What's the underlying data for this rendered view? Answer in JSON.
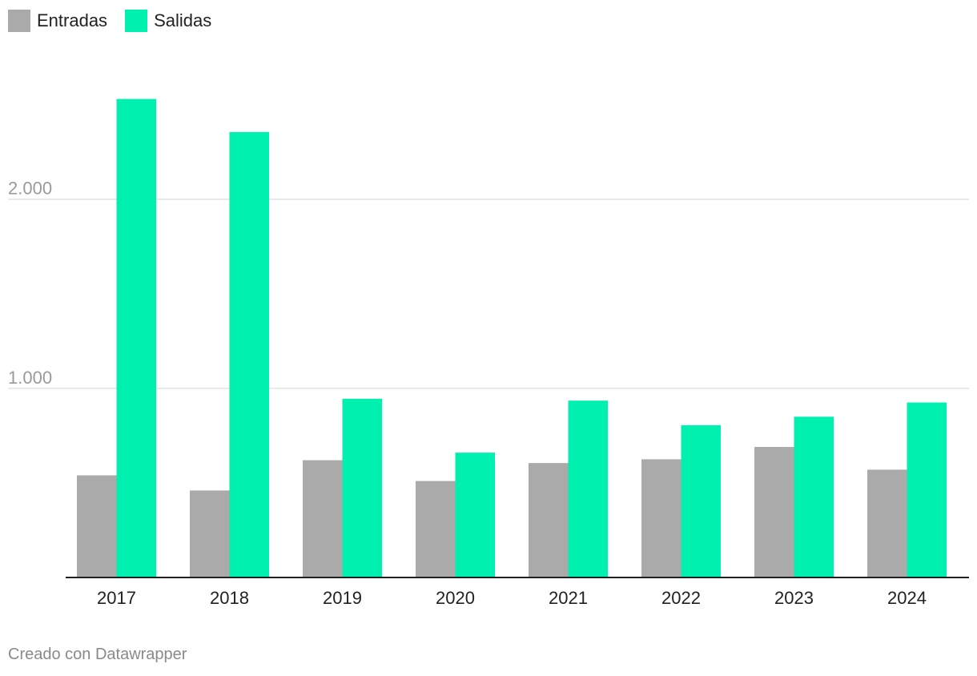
{
  "chart_data": {
    "type": "bar",
    "categories": [
      "2017",
      "2018",
      "2019",
      "2020",
      "2021",
      "2022",
      "2023",
      "2024"
    ],
    "series": [
      {
        "name": "Entradas",
        "color": "#aaaaaa",
        "values": [
          540,
          460,
          620,
          510,
          605,
          625,
          690,
          570
        ]
      },
      {
        "name": "Salidas",
        "color": "#00f0b0",
        "values": [
          2530,
          2355,
          945,
          660,
          935,
          805,
          850,
          925
        ]
      }
    ],
    "yticks": [
      {
        "value": 1000,
        "label": "1.000"
      },
      {
        "value": 2000,
        "label": "2.000"
      }
    ],
    "ylim": [
      0,
      2500
    ],
    "grid": true,
    "legend_position": "top-left"
  },
  "footer": {
    "credit": "Creado con Datawrapper"
  }
}
